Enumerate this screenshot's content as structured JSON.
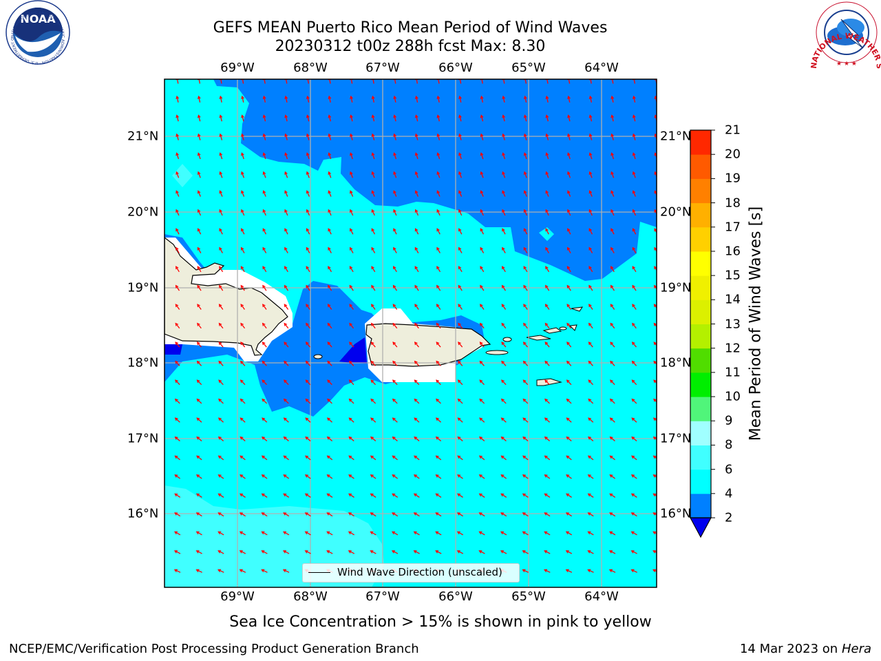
{
  "title": {
    "line1": "GEFS MEAN Puerto Rico Mean Period of Wind Waves",
    "line2": "20230312 t00z 288h fcst   Max: 8.30"
  },
  "logos": {
    "left": "NOAA",
    "left_ring": "NATIONAL OCEANIC AND ATMOSPHERIC ADMINISTRATION · U.S. DEPARTMENT OF COMMERCE",
    "right_ring": "NATIONAL WEATHER SERVICE"
  },
  "map": {
    "lon_labels": [
      "69°W",
      "68°W",
      "67°W",
      "66°W",
      "65°W",
      "64°W"
    ],
    "lat_labels": [
      "21°N",
      "20°N",
      "19°N",
      "18°N",
      "17°N",
      "16°N"
    ],
    "legend": "Wind Wave Direction (unscaled)",
    "colors": {
      "ocean_bg": "#00ffff",
      "band_2_4": "#0080ff",
      "band_below_2": "#0000ee",
      "band_6_8": "#40ffff",
      "land": "#eeeedc",
      "arrow": "#ff0000",
      "grid": "#b0b0b0"
    }
  },
  "colorbar": {
    "label": "Mean Period of Wind Waves [s]",
    "ticks": [
      "2",
      "4",
      "6",
      "8",
      "9",
      "10",
      "11",
      "12",
      "13",
      "14",
      "15",
      "16",
      "17",
      "18",
      "19",
      "20",
      "21"
    ],
    "bands": [
      "#0080ff",
      "#00ffff",
      "#40ffff",
      "#a0ffff",
      "#50f57a",
      "#00ee00",
      "#50dd00",
      "#b4f000",
      "#dcf000",
      "#f0f000",
      "#ffff00",
      "#ffd000",
      "#ffb000",
      "#ff8000",
      "#ff5a00",
      "#ff2800",
      "#ff0000"
    ],
    "under_color": "#0000ee"
  },
  "notes": {
    "ice": "Sea Ice Concentration > 15% is shown in pink to yellow"
  },
  "footer": {
    "left": "NCEP/EMC/Verification Post Processing Product Generation Branch",
    "date": "14 Mar 2023 on",
    "host": "Hera"
  }
}
